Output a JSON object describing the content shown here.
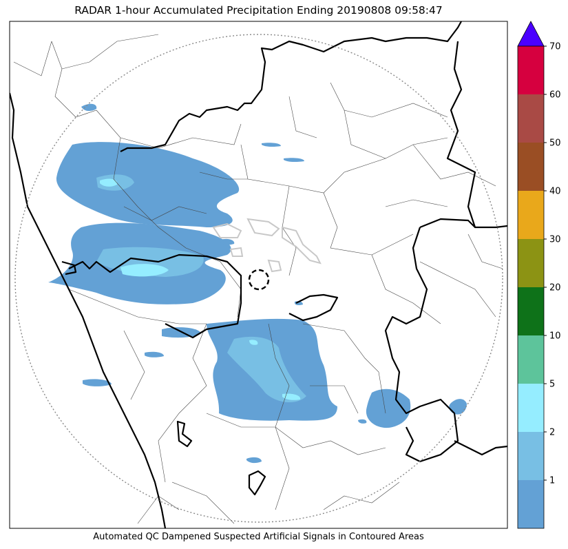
{
  "title": "RADAR 1-hour Accumulated Precipitation Ending 20190808 09:58:47",
  "caption": "Automated QC Dampened Suspected Artificial Signals in Contoured Areas",
  "colorbar": {
    "ticks": [
      "1",
      "2",
      "5",
      "10",
      "20",
      "30",
      "40",
      "50",
      "60",
      "70"
    ],
    "bins": [
      {
        "color": "#63a1d5"
      },
      {
        "color": "#78bfe4"
      },
      {
        "color": "#95edff"
      },
      {
        "color": "#5dc49b"
      },
      {
        "color": "#0e7219"
      },
      {
        "color": "#8c9314"
      },
      {
        "color": "#e9a81b"
      },
      {
        "color": "#9a4e24"
      },
      {
        "color": "#a94a45"
      },
      {
        "color": "#d6003f"
      }
    ],
    "extend_color": "#4a00ff"
  },
  "colors": {
    "rain_light": "#63a1d5",
    "rain_mid": "#78bfe4",
    "rain_heavy": "#95edff",
    "state_border": "#000000",
    "district_border": "#444444",
    "range_ring": "#888888",
    "qc_contour": "#c8c8c8"
  }
}
